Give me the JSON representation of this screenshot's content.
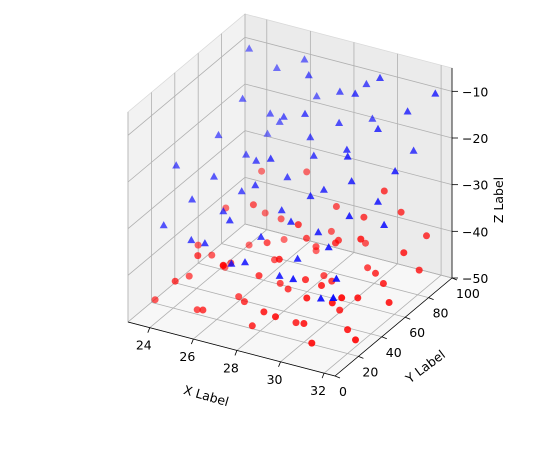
{
  "chart_data": {
    "type": "scatter",
    "title": "",
    "xlabel": "X Label",
    "ylabel": "Y Label",
    "zlabel": "Z Label",
    "xlim": [
      23,
      32.5
    ],
    "ylim": [
      0,
      100
    ],
    "zlim": [
      -50,
      -5
    ],
    "xticks": [
      24,
      26,
      28,
      30,
      32
    ],
    "yticks": [
      0,
      20,
      40,
      60,
      80,
      100
    ],
    "zticks": [
      -50,
      -40,
      -30,
      -20,
      -10
    ],
    "grid": true,
    "legend": "none",
    "series": [
      {
        "marker": "o",
        "color": "#ff0000",
        "points": [
          [
            23.6,
            12,
            -47
          ],
          [
            24.2,
            30,
            -45
          ],
          [
            24.5,
            55,
            -48
          ],
          [
            24.8,
            70,
            -46
          ],
          [
            25.1,
            20,
            -49
          ],
          [
            25.3,
            45,
            -44
          ],
          [
            25.6,
            85,
            -47
          ],
          [
            25.9,
            10,
            -46
          ],
          [
            26.2,
            35,
            -48
          ],
          [
            26.5,
            60,
            -45
          ],
          [
            26.8,
            90,
            -49
          ],
          [
            27.0,
            25,
            -46
          ],
          [
            27.3,
            50,
            -47
          ],
          [
            27.6,
            75,
            -44
          ],
          [
            27.9,
            15,
            -48
          ],
          [
            28.2,
            40,
            -45
          ],
          [
            28.5,
            65,
            -47
          ],
          [
            28.8,
            95,
            -46
          ],
          [
            29.1,
            30,
            -49
          ],
          [
            29.4,
            55,
            -45
          ],
          [
            29.7,
            80,
            -47
          ],
          [
            30.0,
            20,
            -46
          ],
          [
            30.3,
            45,
            -48
          ],
          [
            30.6,
            70,
            -45
          ],
          [
            30.9,
            10,
            -47
          ],
          [
            31.2,
            35,
            -49
          ],
          [
            31.5,
            60,
            -44
          ],
          [
            31.8,
            85,
            -46
          ],
          [
            32.1,
            25,
            -48
          ],
          [
            32.3,
            50,
            -45
          ],
          [
            24.0,
            65,
            -38
          ],
          [
            24.7,
            40,
            -42
          ],
          [
            25.4,
            15,
            -36
          ],
          [
            26.0,
            75,
            -40
          ],
          [
            26.7,
            50,
            -39
          ],
          [
            27.4,
            30,
            -41
          ],
          [
            28.0,
            85,
            -37
          ],
          [
            28.7,
            10,
            -43
          ],
          [
            29.3,
            60,
            -38
          ],
          [
            30.0,
            35,
            -41
          ],
          [
            30.7,
            90,
            -36
          ],
          [
            31.3,
            20,
            -40
          ],
          [
            31.9,
            70,
            -39
          ],
          [
            24.3,
            90,
            -35
          ],
          [
            25.8,
            55,
            -33
          ],
          [
            27.1,
            5,
            -34
          ],
          [
            28.4,
            45,
            -32
          ],
          [
            29.8,
            75,
            -35
          ],
          [
            31.0,
            50,
            -33
          ],
          [
            32.0,
            15,
            -37
          ],
          [
            23.8,
            45,
            -42
          ],
          [
            25.0,
            80,
            -41
          ],
          [
            26.3,
            20,
            -38
          ],
          [
            27.7,
            65,
            -40
          ],
          [
            29.0,
            40,
            -42
          ],
          [
            30.4,
            15,
            -39
          ],
          [
            31.6,
            95,
            -41
          ],
          [
            28.6,
            25,
            -35
          ],
          [
            26.1,
            95,
            -34
          ],
          [
            30.2,
            85,
            -31
          ],
          [
            24.9,
            5,
            -40
          ],
          [
            27.5,
            90,
            -44
          ],
          [
            29.5,
            5,
            -42
          ],
          [
            31.4,
            40,
            -43
          ],
          [
            28.9,
            70,
            -40
          ]
        ]
      },
      {
        "marker": "^",
        "color": "#0000ff",
        "points": [
          [
            24.0,
            85,
            -8
          ],
          [
            25.0,
            90,
            -12
          ],
          [
            26.0,
            95,
            -10
          ],
          [
            27.0,
            80,
            -9
          ],
          [
            28.0,
            88,
            -13
          ],
          [
            29.0,
            92,
            -11
          ],
          [
            30.0,
            85,
            -7
          ],
          [
            31.0,
            90,
            -14
          ],
          [
            32.0,
            95,
            -10
          ],
          [
            24.5,
            70,
            -15
          ],
          [
            25.5,
            75,
            -18
          ],
          [
            26.5,
            68,
            -16
          ],
          [
            27.5,
            72,
            -20
          ],
          [
            28.5,
            78,
            -17
          ],
          [
            29.5,
            66,
            -19
          ],
          [
            30.5,
            74,
            -15
          ],
          [
            31.5,
            70,
            -22
          ],
          [
            24.2,
            55,
            -20
          ],
          [
            25.2,
            60,
            -24
          ],
          [
            26.2,
            50,
            -22
          ],
          [
            27.2,
            58,
            -26
          ],
          [
            28.2,
            62,
            -21
          ],
          [
            29.2,
            52,
            -25
          ],
          [
            30.2,
            57,
            -23
          ],
          [
            31.2,
            61,
            -27
          ],
          [
            24.8,
            40,
            -25
          ],
          [
            25.8,
            45,
            -28
          ],
          [
            26.8,
            38,
            -24
          ],
          [
            27.8,
            42,
            -29
          ],
          [
            28.8,
            48,
            -26
          ],
          [
            29.8,
            36,
            -30
          ],
          [
            30.8,
            44,
            -27
          ],
          [
            23.6,
            30,
            -22
          ],
          [
            24.6,
            25,
            -27
          ],
          [
            25.6,
            33,
            -30
          ],
          [
            26.6,
            20,
            -28
          ],
          [
            27.6,
            28,
            -32
          ],
          [
            28.6,
            35,
            -29
          ],
          [
            29.6,
            22,
            -33
          ],
          [
            30.6,
            30,
            -31
          ],
          [
            31.6,
            18,
            -34
          ],
          [
            24.1,
            10,
            -30
          ],
          [
            25.1,
            15,
            -33
          ],
          [
            26.1,
            8,
            -31
          ],
          [
            27.1,
            12,
            -35
          ],
          [
            28.1,
            5,
            -32
          ],
          [
            29.1,
            16,
            -36
          ],
          [
            30.1,
            9,
            -34
          ],
          [
            31.1,
            14,
            -38
          ],
          [
            32.1,
            6,
            -35
          ],
          [
            26.4,
            98,
            -18
          ],
          [
            28.9,
            99,
            -20
          ],
          [
            30.9,
            97,
            -24
          ],
          [
            24.3,
            95,
            -28
          ],
          [
            27.9,
            60,
            -12
          ],
          [
            29.4,
            75,
            -9
          ],
          [
            31.8,
            55,
            -30
          ],
          [
            25.4,
            85,
            -22
          ],
          [
            27.4,
            40,
            -18
          ],
          [
            30.4,
            50,
            -16
          ]
        ]
      }
    ]
  }
}
